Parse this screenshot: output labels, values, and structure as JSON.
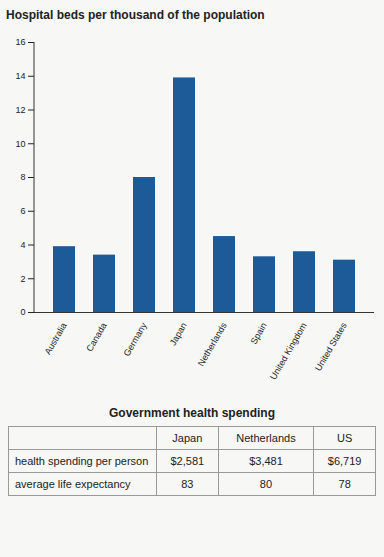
{
  "chart_data": {
    "type": "bar",
    "title": "Hospital beds per thousand of the population",
    "categories": [
      "Australia",
      "Canada",
      "Germany",
      "Japan",
      "Netherlands",
      "Spain",
      "United Kingdom",
      "United States"
    ],
    "values": [
      3.9,
      3.4,
      8.0,
      13.9,
      4.5,
      3.3,
      3.6,
      3.1
    ],
    "color": "#1d5b98",
    "ylim": [
      0,
      16
    ],
    "yticks": [
      0,
      2,
      4,
      6,
      8,
      10,
      12,
      14,
      16
    ],
    "grid": false
  },
  "table": {
    "title": "Government health spending",
    "columns": [
      "Japan",
      "Netherlands",
      "US"
    ],
    "rows": [
      {
        "label": "health spending per person",
        "values": [
          "$2,581",
          "$3,481",
          "$6,719"
        ]
      },
      {
        "label": "average life expectancy",
        "values": [
          "83",
          "80",
          "78"
        ]
      }
    ]
  }
}
